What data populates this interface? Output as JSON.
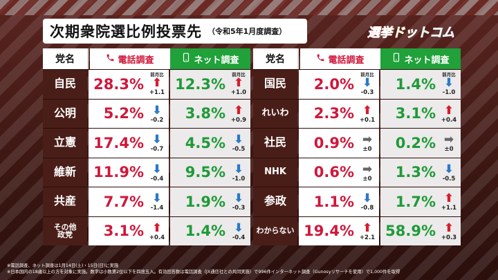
{
  "title": {
    "main": "次期衆院選比例投票先",
    "sub": "（令和5年1月度調査）"
  },
  "logo": "選挙ドットコム",
  "headers": {
    "party": "党名",
    "telephone": "電話調査",
    "internet": "ネット調査",
    "prev_month": "前月比"
  },
  "colors": {
    "telephone": "#d0173a",
    "internet": "#1f9a38",
    "up_arrow": "#d51e2d",
    "down_arrow": "#2b79c9",
    "flat_arrow": "#666666"
  },
  "left_rows": [
    {
      "party": "自民",
      "tel": "28.3%",
      "tel_dir": "up",
      "tel_chg": "+1.1",
      "tel_label": "前月比",
      "net": "12.3%",
      "net_dir": "up",
      "net_chg": "+1.0",
      "net_label": "前月比"
    },
    {
      "party": "公明",
      "tel": "5.2%",
      "tel_dir": "down",
      "tel_chg": "-0.2",
      "tel_label": "",
      "net": "3.8%",
      "net_dir": "up",
      "net_chg": "+0.9",
      "net_label": ""
    },
    {
      "party": "立憲",
      "tel": "17.4%",
      "tel_dir": "down",
      "tel_chg": "-0.7",
      "tel_label": "",
      "net": "4.5%",
      "net_dir": "down",
      "net_chg": "-0.5",
      "net_label": ""
    },
    {
      "party": "維新",
      "tel": "11.9%",
      "tel_dir": "down",
      "tel_chg": "-0.4",
      "tel_label": "",
      "net": "9.5%",
      "net_dir": "down",
      "net_chg": "-1.0",
      "net_label": ""
    },
    {
      "party": "共産",
      "tel": "7.7%",
      "tel_dir": "down",
      "tel_chg": "-1.4",
      "tel_label": "",
      "net": "1.9%",
      "net_dir": "down",
      "net_chg": "-0.3",
      "net_label": ""
    },
    {
      "party": "その他\n政党",
      "tel": "3.1%",
      "tel_dir": "up",
      "tel_chg": "+0.4",
      "tel_label": "",
      "net": "1.4%",
      "net_dir": "down",
      "net_chg": "-0.4",
      "net_label": ""
    }
  ],
  "right_rows": [
    {
      "party": "国民",
      "tel": "2.0%",
      "tel_dir": "down",
      "tel_chg": "-0.3",
      "tel_label": "前月比",
      "net": "1.4%",
      "net_dir": "down",
      "net_chg": "-1.0",
      "net_label": "前月比"
    },
    {
      "party": "れいわ",
      "tel": "2.3%",
      "tel_dir": "up",
      "tel_chg": "+0.1",
      "tel_label": "",
      "net": "3.1%",
      "net_dir": "up",
      "net_chg": "+0.4",
      "net_label": ""
    },
    {
      "party": "社民",
      "tel": "0.9%",
      "tel_dir": "flat",
      "tel_chg": "±0",
      "tel_label": "",
      "net": "0.2%",
      "net_dir": "flat",
      "net_chg": "±0",
      "net_label": ""
    },
    {
      "party": "NHK",
      "tel": "0.6%",
      "tel_dir": "flat",
      "tel_chg": "±0",
      "tel_label": "",
      "net": "1.3%",
      "net_dir": "down",
      "net_chg": "-0.5",
      "net_label": ""
    },
    {
      "party": "参政",
      "tel": "1.1%",
      "tel_dir": "down",
      "tel_chg": "-0.8",
      "tel_label": "",
      "net": "1.7%",
      "net_dir": "up",
      "net_chg": "+1.1",
      "net_label": ""
    },
    {
      "party": "わからない",
      "tel": "19.4%",
      "tel_dir": "up",
      "tel_chg": "+2.1",
      "tel_label": "",
      "net": "58.9%",
      "net_dir": "up",
      "net_chg": "+0.3",
      "net_label": ""
    }
  ],
  "notes": [
    "※電話調査、ネット調査は1月14日(土)・15日(日)に実施",
    "※日本国内の18歳以上の方を対象に実施。数字は小数第2位以下を四捨五入。有効回答数は電話調査（JX通信社との共同実施）で996件インターネット調査（Gunosyリサーチを使用）で1,000件を取得"
  ]
}
